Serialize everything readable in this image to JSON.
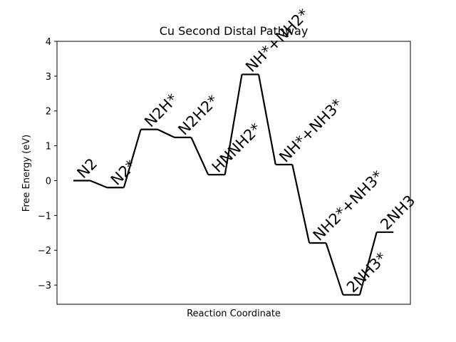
{
  "chart_data": {
    "type": "line",
    "title": "Cu Second Distal Pathway",
    "xlabel": "Reaction Coordinate",
    "ylabel": "Free Energy (eV)",
    "ylim": [
      -3.55,
      4.0
    ],
    "yticks": [
      "4",
      "3",
      "2",
      "1",
      "0",
      "−1",
      "−2",
      "−3"
    ],
    "ytick_values": [
      4,
      3,
      2,
      1,
      0,
      -1,
      -2,
      -3
    ],
    "grid": false,
    "line_color": "#000000",
    "states": [
      {
        "label": "N2",
        "energy": 0.0
      },
      {
        "label": "N2*",
        "energy": -0.2
      },
      {
        "label": "N2H*",
        "energy": 1.47
      },
      {
        "label": "N2H2*",
        "energy": 1.24
      },
      {
        "label": "HNNH2*",
        "energy": 0.17
      },
      {
        "label": "NH*+NH2*",
        "energy": 3.05
      },
      {
        "label": "NH*+NH3*",
        "energy": 0.46
      },
      {
        "label": "NH2*+NH3*",
        "energy": -1.79
      },
      {
        "label": "2NH3*",
        "energy": -3.28
      },
      {
        "label": "2NH3",
        "energy": -1.48
      }
    ]
  }
}
